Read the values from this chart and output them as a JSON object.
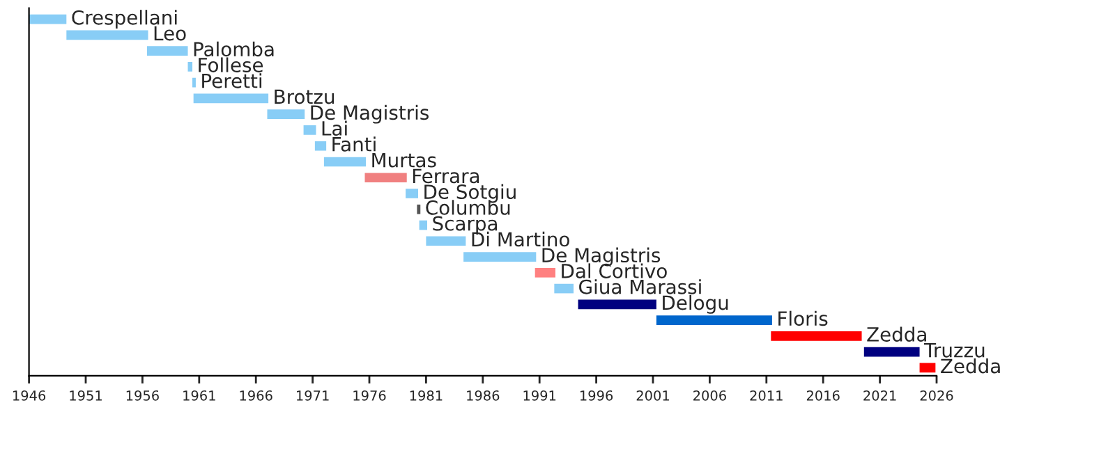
{
  "chart_data": {
    "type": "bar",
    "orientation": "horizontal",
    "categories": [
      "Crespellani",
      "Leo",
      "Palomba",
      "Follese",
      "Peretti",
      "Brotzu",
      "De Magistris",
      "Lai",
      "Fanti",
      "Murtas",
      "Ferrara",
      "De Sotgiu",
      "Columbu",
      "Scarpa",
      "Di Martino",
      "De Magistris",
      "Dal Cortivo",
      "Giua Marassi",
      "Delogu",
      "Floris",
      "Zedda",
      "Truzzu",
      "Zedda"
    ],
    "base": [
      1946,
      1949.3,
      1956.4,
      1960,
      1960.4,
      1960.5,
      1967,
      1970.2,
      1971.2,
      1972,
      1975.6,
      1979.2,
      1980.2,
      1980.4,
      1981,
      1984.3,
      1990.6,
      1992.3,
      1994.4,
      2001.3,
      2011.4,
      2019.6,
      2024.5
    ],
    "values": [
      3.3,
      7.2,
      3.6,
      0.4,
      0.3,
      6.6,
      3.3,
      1.1,
      1,
      3.7,
      3.7,
      1.1,
      0.3,
      0.7,
      3.5,
      6.4,
      1.8,
      1.7,
      6.9,
      10.2,
      8,
      4.9,
      1.4
    ],
    "colors": [
      "#88cdf6",
      "#88cdf6",
      "#88cdf6",
      "#88cdf6",
      "#88cdf6",
      "#88cdf6",
      "#88cdf6",
      "#88cdf6",
      "#88cdf6",
      "#88cdf6",
      "#f08080",
      "#88cdf6",
      "#555555",
      "#88cdf6",
      "#88cdf6",
      "#88cdf6",
      "#ff8080",
      "#88cdf6",
      "#000080",
      "#0066cc",
      "#ff0000",
      "#000080",
      "#ff0000"
    ],
    "xlim": [
      1946,
      2026
    ],
    "xticks": [
      1946,
      1951,
      1956,
      1961,
      1966,
      1971,
      1976,
      1981,
      1986,
      1991,
      1996,
      2001,
      2006,
      2011,
      2016,
      2021,
      2026
    ],
    "tick_labels": "x",
    "grid": false,
    "legend": false
  }
}
